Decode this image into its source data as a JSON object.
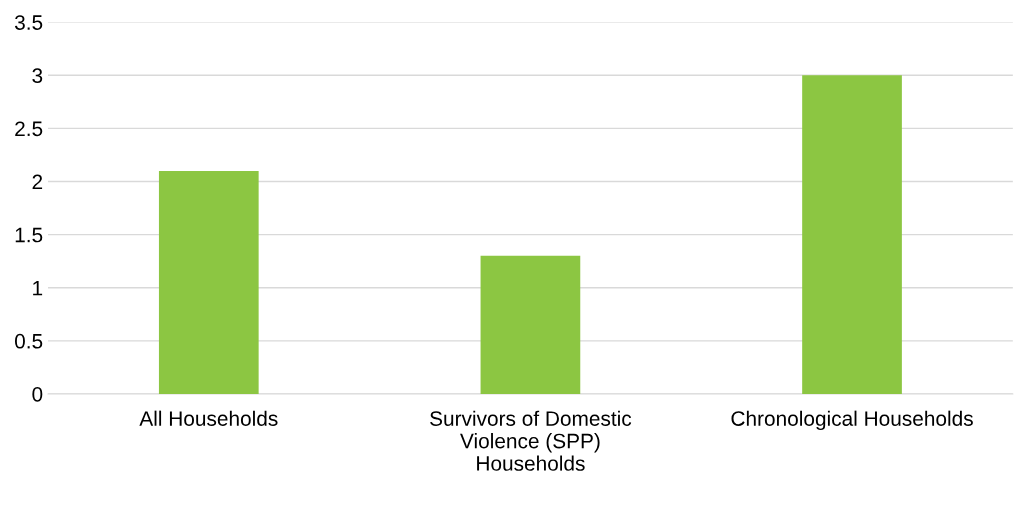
{
  "chart_data": {
    "type": "bar",
    "categories": [
      "All Households",
      "Survivors of Domestic\nViolence (SPP)\nHouseholds",
      "Chronological Households"
    ],
    "values": [
      2.1,
      1.3,
      3.0
    ],
    "color": "#8cc642",
    "ylim": [
      0,
      3.5
    ],
    "yticks": [
      {
        "value": 0,
        "label": "0"
      },
      {
        "value": 0.5,
        "label": "0.5"
      },
      {
        "value": 1,
        "label": "1"
      },
      {
        "value": 1.5,
        "label": "1.5"
      },
      {
        "value": 2,
        "label": "2"
      },
      {
        "value": 2.5,
        "label": "2.5"
      },
      {
        "value": 3,
        "label": "3"
      },
      {
        "value": 3.5,
        "label": "3.5"
      }
    ],
    "grid": "y",
    "legend": false
  }
}
